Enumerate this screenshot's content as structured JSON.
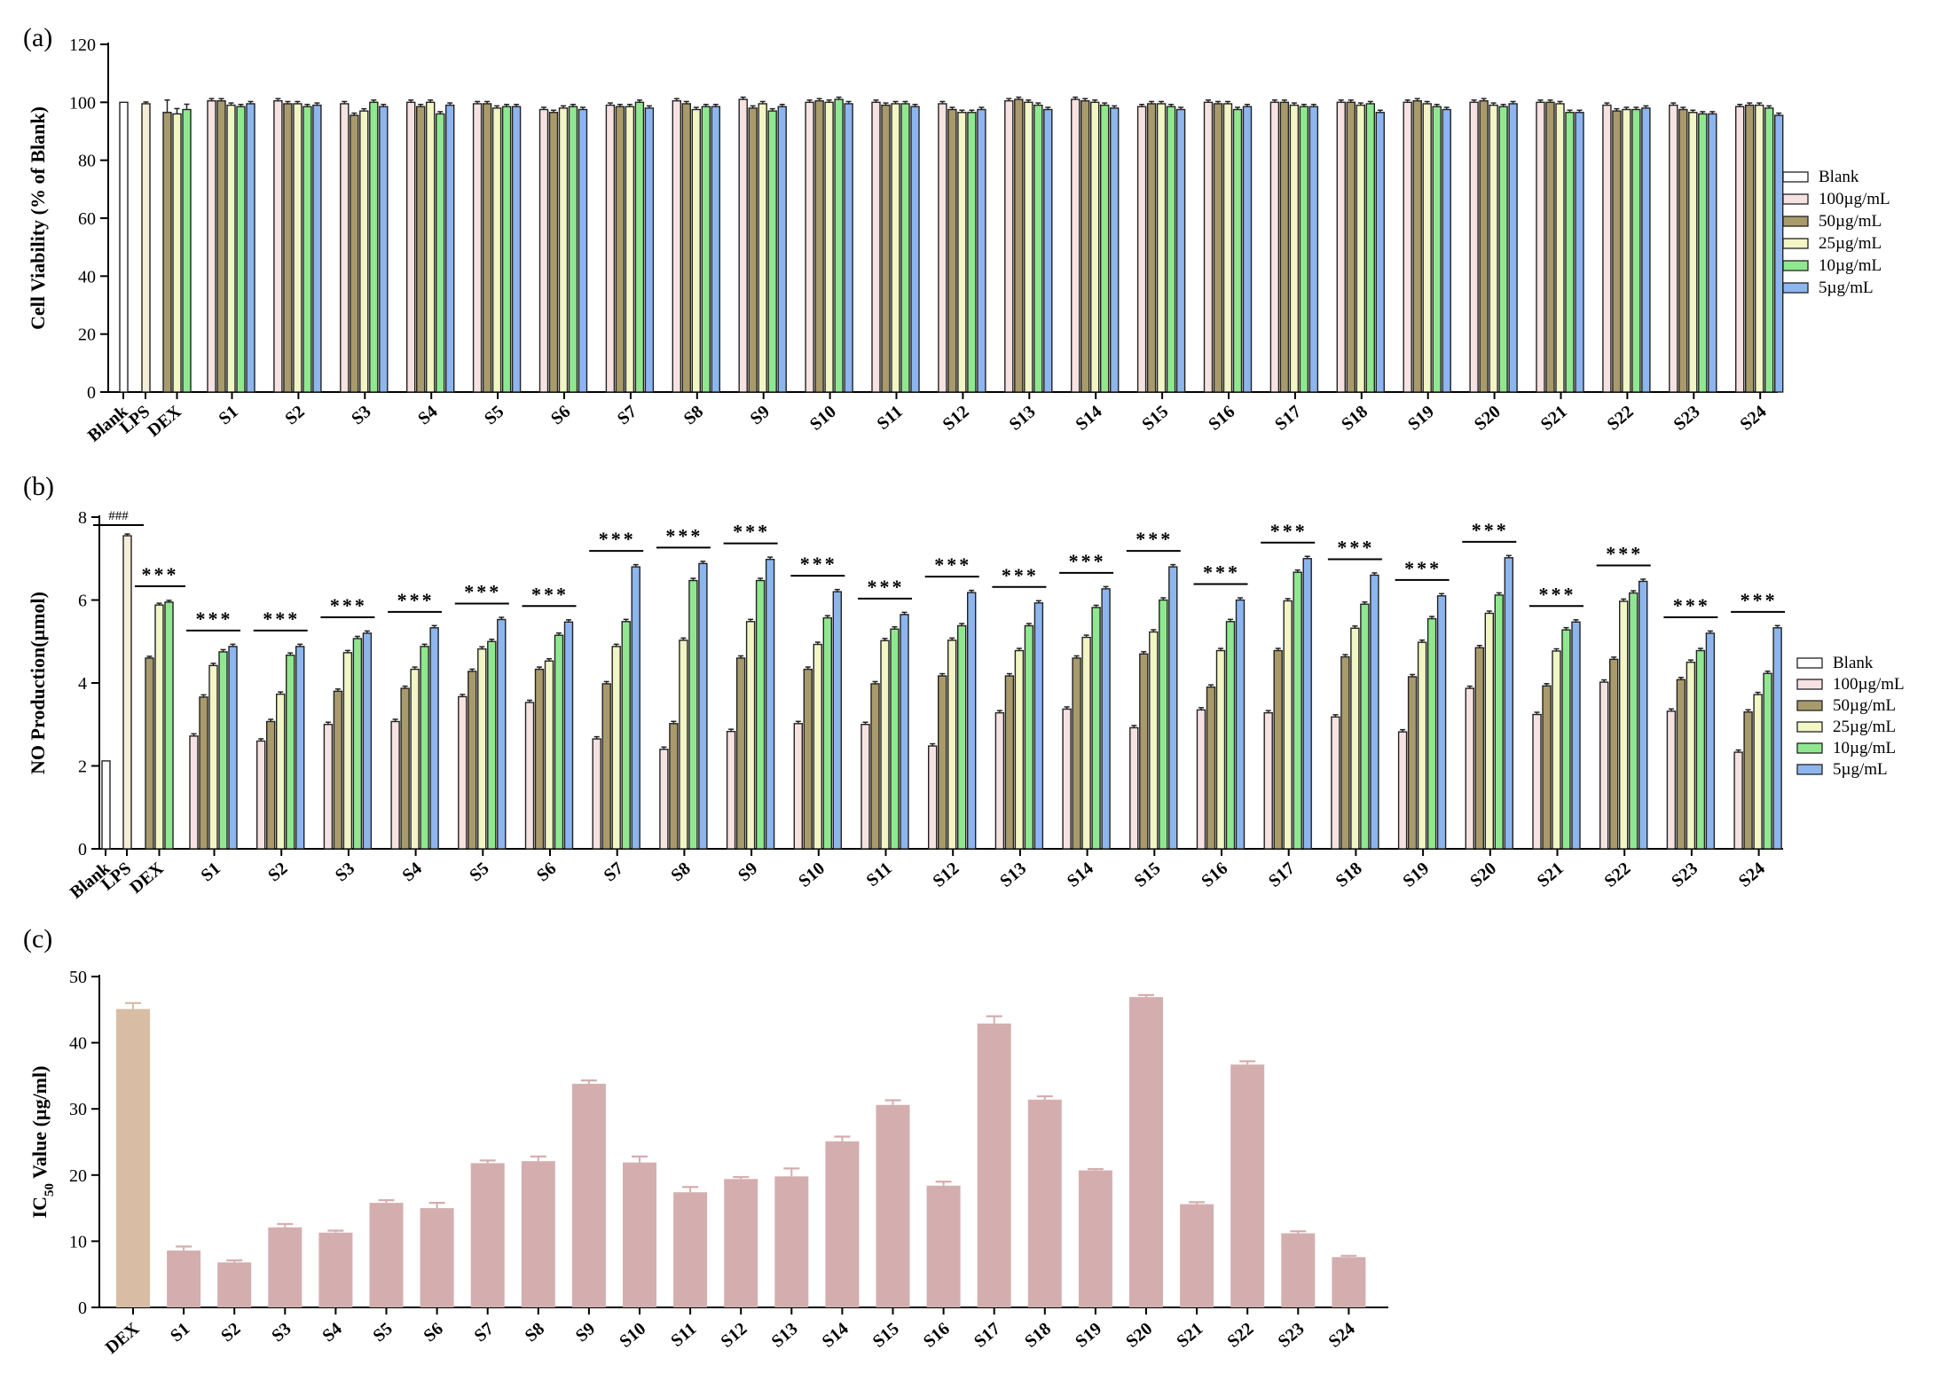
{
  "figure": {
    "panels": [
      "(a)",
      "(b)",
      "(c)"
    ]
  },
  "colors": {
    "Blank": "#ffffff",
    "100µg/mL": "#f7e2e2",
    "50µg/mL": "#a99a6b",
    "25µg/mL": "#f2f5c4",
    "10µg/mL": "#8fe88f",
    "5µg/mL": "#8db6ef",
    "LPS": "#f4eed8",
    "DEX": "#a99a6b",
    "ic50_dex": "#d8bda4",
    "ic50_sample": "#d4aeae"
  },
  "chart_data": [
    {
      "type": "bar",
      "panel": "(a)",
      "ylabel": "Cell Viability (% of Blank)",
      "ylim": [
        0,
        120
      ],
      "yticks": [
        0,
        20,
        40,
        60,
        80,
        100,
        120
      ],
      "legend": [
        "Blank",
        "100µg/mL",
        "50µg/mL",
        "25µg/mL",
        "10µg/mL",
        "5µg/mL"
      ],
      "legend_position": "right",
      "controls": [
        {
          "label": "Blank",
          "series": "Blank",
          "value": 100
        },
        {
          "label": "LPS",
          "series": "LPS",
          "value": 99.5
        },
        {
          "label": "DEX",
          "series": "DEX",
          "values": [
            96.5,
            96.0,
            97.5
          ]
        }
      ],
      "categories": [
        "S1",
        "S2",
        "S3",
        "S4",
        "S5",
        "S6",
        "S7",
        "S8",
        "S9",
        "S10",
        "S11",
        "S12",
        "S13",
        "S14",
        "S15",
        "S16",
        "S17",
        "S18",
        "S19",
        "S20",
        "S21",
        "S22",
        "S23",
        "S24"
      ],
      "series": [
        {
          "name": "100µg/mL",
          "values": [
            100.5,
            100.5,
            99.5,
            100,
            99.5,
            97.5,
            99,
            100.5,
            101,
            100,
            100,
            99.5,
            100.5,
            101,
            98.5,
            100,
            100,
            100,
            100,
            100,
            100,
            99,
            99,
            98.5
          ]
        },
        {
          "name": "50µg/mL",
          "values": [
            100.5,
            99.5,
            95.5,
            98.5,
            99.5,
            96.5,
            98.5,
            99.5,
            98,
            100.5,
            99,
            97.5,
            101,
            100.5,
            99.5,
            99.5,
            100,
            100,
            100.5,
            100.5,
            100,
            97,
            97.5,
            99
          ]
        },
        {
          "name": "25µg/mL",
          "values": [
            99,
            99.5,
            97,
            100,
            98,
            98,
            98.5,
            97.5,
            99.5,
            100,
            99.5,
            96.5,
            100,
            100,
            99.5,
            99.5,
            99,
            99,
            99.5,
            99,
            99.5,
            97.5,
            96.5,
            99
          ]
        },
        {
          "name": "10µg/mL",
          "values": [
            98.5,
            98.5,
            100,
            96,
            98.5,
            98.5,
            100,
            98.5,
            97,
            101,
            99.5,
            96.5,
            99,
            99,
            98.5,
            97.5,
            98.5,
            99.5,
            98.5,
            98.5,
            96.5,
            97.5,
            96,
            98
          ]
        },
        {
          "name": "5µg/mL",
          "values": [
            99.5,
            99,
            98.5,
            99,
            98.5,
            97.5,
            98,
            98.5,
            98.5,
            99.5,
            98.5,
            97.5,
            97.5,
            98,
            97.5,
            98.5,
            98.5,
            96.5,
            97.5,
            99.5,
            96.5,
            98,
            96,
            95.5
          ]
        }
      ]
    },
    {
      "type": "bar",
      "panel": "(b)",
      "ylabel": "NO Production(µmol)",
      "ylim": [
        0,
        8
      ],
      "yticks": [
        0,
        2,
        4,
        6,
        8
      ],
      "legend": [
        "Blank",
        "100µg/mL",
        "50µg/mL",
        "25µg/mL",
        "10µg/mL",
        "5µg/mL"
      ],
      "legend_position": "right",
      "controls": [
        {
          "label": "Blank",
          "series": "Blank",
          "value": 2.12
        },
        {
          "label": "LPS",
          "series": "LPS",
          "value": 7.55
        },
        {
          "label": "DEX",
          "series": "DEX",
          "values": [
            4.6,
            5.88,
            5.95
          ]
        }
      ],
      "categories": [
        "S1",
        "S2",
        "S3",
        "S4",
        "S5",
        "S6",
        "S7",
        "S8",
        "S9",
        "S10",
        "S11",
        "S12",
        "S13",
        "S14",
        "S15",
        "S16",
        "S17",
        "S18",
        "S19",
        "S20",
        "S21",
        "S22",
        "S23",
        "S24"
      ],
      "series": [
        {
          "name": "100µg/mL",
          "values": [
            2.72,
            2.6,
            3.0,
            3.07,
            3.67,
            3.53,
            2.65,
            2.4,
            2.83,
            3.02,
            3.0,
            2.48,
            3.28,
            3.37,
            2.92,
            3.35,
            3.28,
            3.18,
            2.82,
            3.87,
            3.24,
            4.02,
            3.32,
            2.33
          ]
        },
        {
          "name": "50µg/mL",
          "values": [
            3.66,
            3.07,
            3.8,
            3.87,
            4.28,
            4.33,
            3.98,
            3.02,
            4.6,
            4.33,
            3.98,
            4.17,
            4.17,
            4.6,
            4.7,
            3.9,
            4.78,
            4.63,
            4.15,
            4.85,
            3.93,
            4.57,
            4.08,
            3.3
          ]
        },
        {
          "name": "25µg/mL",
          "values": [
            4.42,
            3.73,
            4.73,
            4.33,
            4.82,
            4.53,
            4.88,
            5.03,
            5.48,
            4.93,
            5.02,
            5.03,
            4.78,
            5.1,
            5.23,
            4.78,
            5.98,
            5.32,
            4.98,
            5.68,
            4.77,
            5.97,
            4.5,
            3.72
          ]
        },
        {
          "name": "10µg/mL",
          "values": [
            4.75,
            4.67,
            5.07,
            4.88,
            5.0,
            5.15,
            5.48,
            6.47,
            6.47,
            5.57,
            5.3,
            5.38,
            5.38,
            5.82,
            6.0,
            5.48,
            6.67,
            5.9,
            5.55,
            6.12,
            5.28,
            6.17,
            4.78,
            4.23
          ]
        },
        {
          "name": "5µg/mL",
          "values": [
            4.88,
            4.88,
            5.2,
            5.33,
            5.53,
            5.47,
            6.8,
            6.88,
            6.98,
            6.2,
            5.65,
            6.18,
            5.93,
            6.27,
            6.8,
            6.0,
            7.0,
            6.6,
            6.1,
            7.02,
            5.47,
            6.45,
            5.2,
            5.33
          ]
        }
      ],
      "significance": {
        "lps": "###",
        "groups": "***"
      }
    },
    {
      "type": "bar",
      "panel": "(c)",
      "ylabel_main": "IC",
      "ylabel_sub": "50",
      "ylabel_rest": "  Value (µg/ml)",
      "ylim": [
        0,
        50
      ],
      "yticks": [
        0,
        10,
        20,
        30,
        40,
        50
      ],
      "categories": [
        "DEX",
        "S1",
        "S2",
        "S3",
        "S4",
        "S5",
        "S6",
        "S7",
        "S8",
        "S9",
        "S10",
        "S11",
        "S12",
        "S13",
        "S14",
        "S15",
        "S16",
        "S17",
        "S18",
        "S19",
        "S20",
        "S21",
        "S22",
        "S23",
        "S24"
      ],
      "values": [
        45.1,
        8.6,
        6.8,
        12.1,
        11.3,
        15.8,
        15.0,
        21.8,
        22.1,
        33.8,
        21.9,
        17.4,
        19.4,
        19.8,
        25.1,
        30.6,
        18.4,
        42.9,
        31.4,
        20.7,
        46.9,
        15.6,
        36.7,
        11.2,
        7.6
      ],
      "errors": [
        0.9,
        0.6,
        0.3,
        0.5,
        0.3,
        0.4,
        0.8,
        0.4,
        0.7,
        0.5,
        0.9,
        0.8,
        0.3,
        1.2,
        0.7,
        0.7,
        0.6,
        1.1,
        0.5,
        0.2,
        0.3,
        0.3,
        0.5,
        0.3,
        0.2
      ]
    }
  ]
}
